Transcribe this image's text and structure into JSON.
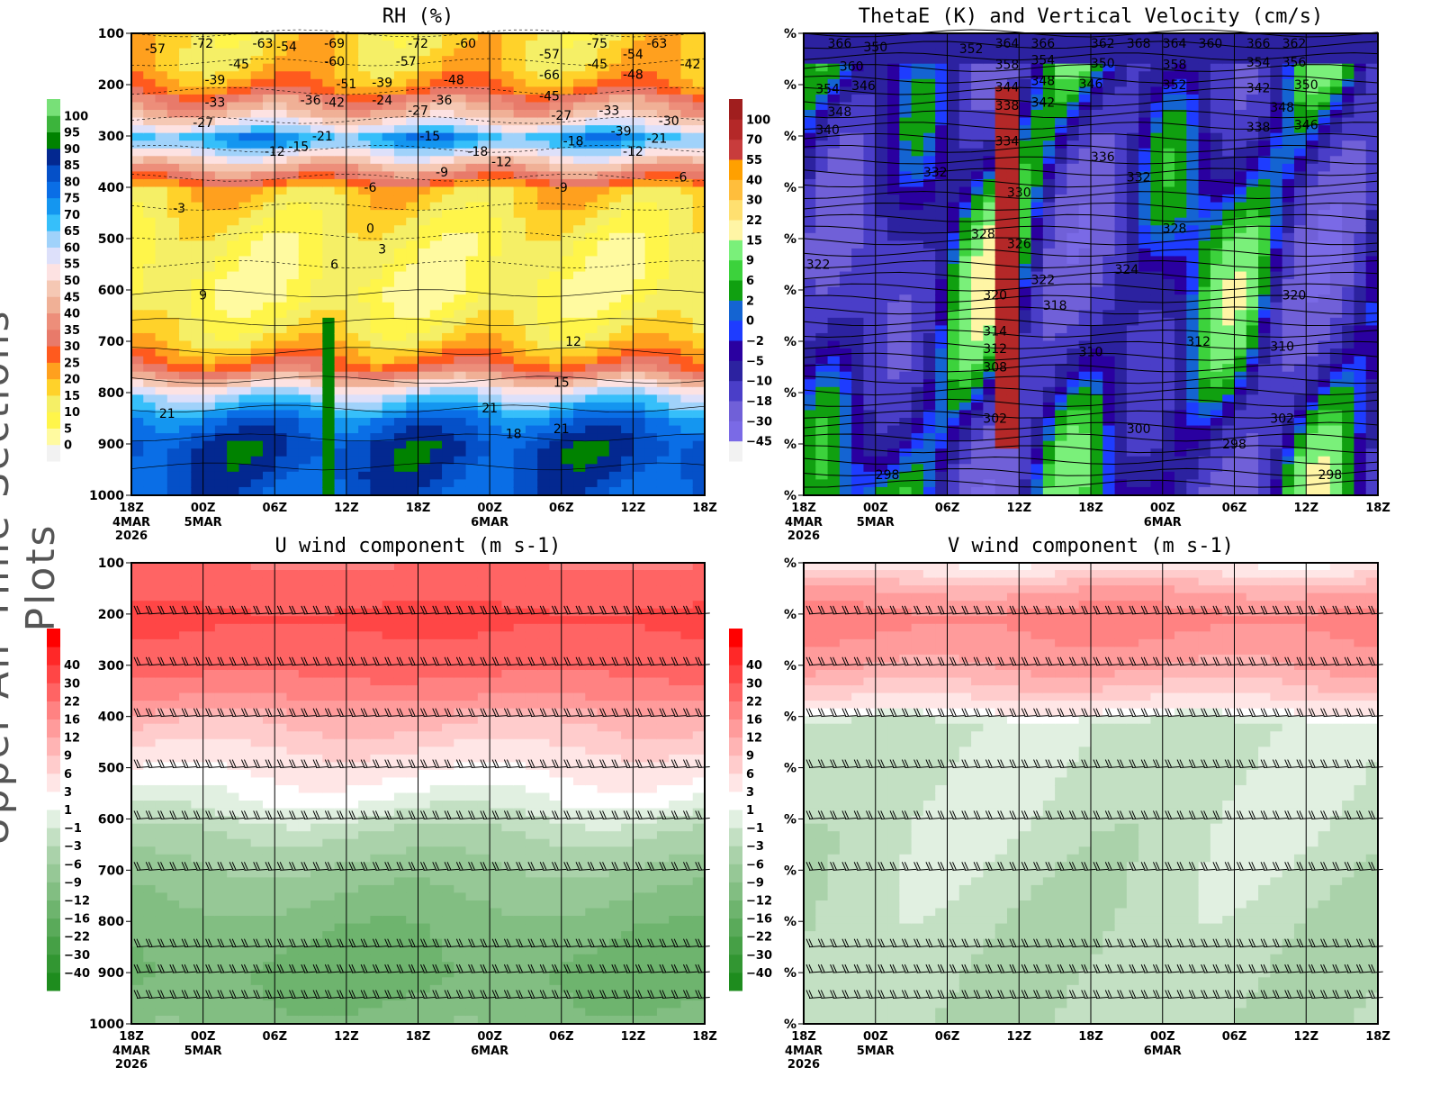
{
  "side_title": "Upper-Air Time Sections Plots",
  "time_ticks": [
    "18Z",
    "00Z",
    "06Z",
    "12Z",
    "18Z",
    "00Z",
    "06Z",
    "12Z",
    "18Z"
  ],
  "date_labels": [
    {
      "tick": 0,
      "lines": [
        "4MAR",
        "2026"
      ]
    },
    {
      "tick": 1,
      "lines": [
        "5MAR"
      ]
    },
    {
      "tick": 5,
      "lines": [
        "6MAR"
      ]
    }
  ],
  "pressure_ticks": [
    100,
    200,
    300,
    400,
    500,
    600,
    700,
    800,
    900,
    1000
  ],
  "chart_data": [
    {
      "id": "rh",
      "type": "heatmap",
      "title": "RH (%)",
      "ylabel_style": "pressure",
      "levels": [
        0,
        5,
        10,
        15,
        20,
        25,
        30,
        35,
        40,
        45,
        50,
        55,
        60,
        65,
        70,
        75,
        80,
        85,
        90,
        95,
        100
      ],
      "colors": [
        "#f2f2f2",
        "#fffaa0",
        "#fff54a",
        "#f5ef66",
        "#ffd22a",
        "#ffa01e",
        "#ff5a1e",
        "#e87a6a",
        "#ed8e7a",
        "#f0b096",
        "#f5c8b4",
        "#fde2e2",
        "#dde0fa",
        "#a0d2fa",
        "#36bffa",
        "#1496f0",
        "#0a6ee6",
        "#0550c8",
        "#032890",
        "#008200",
        "#3cb43c",
        "#78e078"
      ],
      "profile": [
        [
          100,
          15
        ],
        [
          160,
          18
        ],
        [
          200,
          25
        ],
        [
          220,
          35
        ],
        [
          250,
          45
        ],
        [
          280,
          60
        ],
        [
          300,
          74
        ],
        [
          320,
          60
        ],
        [
          350,
          45
        ],
        [
          380,
          30
        ],
        [
          400,
          18
        ],
        [
          500,
          9
        ],
        [
          600,
          6
        ],
        [
          680,
          14
        ],
        [
          740,
          28
        ],
        [
          770,
          45
        ],
        [
          800,
          62
        ],
        [
          850,
          78
        ],
        [
          900,
          86
        ],
        [
          950,
          84
        ],
        [
          1000,
          80
        ]
      ],
      "contours": [
        [
          2,
          130,
          "-57"
        ],
        [
          6,
          70,
          "-72"
        ],
        [
          11,
          90,
          "-63"
        ],
        [
          13,
          125,
          "-54"
        ],
        [
          9,
          160,
          "-45"
        ],
        [
          7,
          190,
          "-39"
        ],
        [
          7,
          220,
          "-33"
        ],
        [
          6,
          260,
          "-27"
        ],
        [
          17,
          110,
          "-69"
        ],
        [
          17,
          140,
          "-60"
        ],
        [
          18,
          170,
          "-51"
        ],
        [
          24,
          70,
          "-72"
        ],
        [
          23,
          140,
          "-57"
        ],
        [
          24,
          250,
          "-27"
        ],
        [
          21,
          230,
          "-24"
        ],
        [
          16,
          300,
          "-21"
        ],
        [
          29,
          330,
          "-18"
        ],
        [
          31,
          350,
          "-12"
        ],
        [
          26,
          370,
          "-9"
        ],
        [
          20,
          400,
          "-6"
        ],
        [
          12,
          330,
          "-12"
        ],
        [
          14,
          320,
          "-15"
        ],
        [
          4,
          440,
          "-3"
        ],
        [
          20,
          480,
          "0"
        ],
        [
          21,
          520,
          "3"
        ],
        [
          17,
          550,
          "6"
        ],
        [
          6,
          610,
          "9"
        ],
        [
          3,
          840,
          "21"
        ],
        [
          30,
          830,
          "21"
        ],
        [
          37,
          700,
          "12"
        ],
        [
          36,
          780,
          "15"
        ],
        [
          36,
          870,
          "21"
        ],
        [
          32,
          880,
          "18"
        ],
        [
          35,
          140,
          "-57"
        ],
        [
          42,
          140,
          "-54"
        ],
        [
          45,
          270,
          "-30"
        ],
        [
          42,
          330,
          "-12"
        ],
        [
          46,
          380,
          "-6"
        ],
        [
          28,
          70,
          "-60"
        ],
        [
          35,
          40,
          "-66"
        ],
        [
          39,
          40,
          "-75"
        ],
        [
          44,
          70,
          "-63"
        ],
        [
          35,
          180,
          "-45"
        ],
        [
          36,
          260,
          "-27"
        ],
        [
          44,
          290,
          "-21"
        ],
        [
          37,
          310,
          "-18"
        ],
        [
          36,
          400,
          "-9"
        ],
        [
          42,
          110,
          "-48"
        ],
        [
          26,
          230,
          "-36"
        ],
        [
          21,
          210,
          "-39"
        ],
        [
          15,
          230,
          "-36"
        ],
        [
          17,
          220,
          "-42"
        ],
        [
          25,
          300,
          "-15"
        ],
        [
          27,
          190,
          "-48"
        ],
        [
          40,
          250,
          "-33"
        ],
        [
          41,
          220,
          "-39"
        ],
        [
          39,
          160,
          "-45"
        ],
        [
          47,
          160,
          "-42"
        ]
      ]
    },
    {
      "id": "thetae",
      "type": "heatmap",
      "title": "ThetaE (K) and Vertical Velocity (cm/s)",
      "ylabel_style": "percent",
      "levels": [
        -45,
        -30,
        -18,
        -10,
        -5,
        -2,
        0,
        2,
        6,
        9,
        15,
        22,
        30,
        40,
        55,
        70,
        100
      ],
      "colors": [
        "#f2f2f2",
        "#7a6ae6",
        "#7060d8",
        "#4a3ec8",
        "#2c22a0",
        "#2a00a0",
        "#1e3cff",
        "#1464d2",
        "#10a010",
        "#3cd23c",
        "#7af07a",
        "#fff5a5",
        "#ffe070",
        "#ffbe3c",
        "#ffa000",
        "#c83c3c",
        "#b42828",
        "#a01e1e"
      ],
      "contours": [
        [
          3,
          50,
          "366"
        ],
        [
          4,
          80,
          "360"
        ],
        [
          2,
          110,
          "354"
        ],
        [
          3,
          140,
          "348"
        ],
        [
          6,
          140,
          "350"
        ],
        [
          5,
          160,
          "346"
        ],
        [
          17,
          70,
          "364"
        ],
        [
          17,
          90,
          "358"
        ],
        [
          14,
          130,
          "352"
        ],
        [
          20,
          70,
          "366"
        ],
        [
          20,
          110,
          "354"
        ],
        [
          20,
          150,
          "348"
        ],
        [
          25,
          70,
          "362"
        ],
        [
          25,
          130,
          "350"
        ],
        [
          24,
          170,
          "346"
        ],
        [
          28,
          50,
          "368"
        ],
        [
          31,
          70,
          "364"
        ],
        [
          31,
          90,
          "358"
        ],
        [
          31,
          130,
          "352"
        ],
        [
          34,
          90,
          "360"
        ],
        [
          38,
          70,
          "366"
        ],
        [
          38,
          100,
          "354"
        ],
        [
          41,
          80,
          "362"
        ],
        [
          41,
          100,
          "356"
        ],
        [
          42,
          130,
          "350"
        ],
        [
          40,
          160,
          "348"
        ],
        [
          42,
          180,
          "346"
        ],
        [
          17,
          190,
          "344"
        ],
        [
          20,
          220,
          "342"
        ],
        [
          17,
          240,
          "338"
        ],
        [
          38,
          220,
          "342"
        ],
        [
          38,
          240,
          "338"
        ],
        [
          2,
          260,
          "340"
        ],
        [
          17,
          310,
          "334"
        ],
        [
          25,
          340,
          "336"
        ],
        [
          11,
          370,
          "332"
        ],
        [
          28,
          380,
          "332"
        ],
        [
          18,
          410,
          "330"
        ],
        [
          15,
          490,
          "328"
        ],
        [
          18,
          510,
          "326"
        ],
        [
          31,
          480,
          "328"
        ],
        [
          27,
          560,
          "324"
        ],
        [
          1,
          550,
          "322"
        ],
        [
          20,
          580,
          "322"
        ],
        [
          16,
          610,
          "320"
        ],
        [
          21,
          630,
          "318"
        ],
        [
          41,
          610,
          "320"
        ],
        [
          16,
          680,
          "314"
        ],
        [
          16,
          700,
          "312"
        ],
        [
          24,
          720,
          "310"
        ],
        [
          33,
          700,
          "312"
        ],
        [
          40,
          710,
          "310"
        ],
        [
          16,
          750,
          "308"
        ],
        [
          16,
          850,
          "302"
        ],
        [
          40,
          850,
          "302"
        ],
        [
          28,
          870,
          "300"
        ],
        [
          36,
          900,
          "298"
        ],
        [
          7,
          960,
          "298"
        ],
        [
          44,
          960,
          "298"
        ]
      ]
    },
    {
      "id": "u",
      "type": "heatmap",
      "title": "U wind component (m s-1)",
      "ylabel_style": "pressure",
      "levels": [
        -40,
        -30,
        -22,
        -16,
        -12,
        -9,
        -6,
        -3,
        -1,
        1,
        3,
        6,
        9,
        12,
        16,
        22,
        30,
        40
      ],
      "colors": [
        "#1e8c1e",
        "#329632",
        "#46a046",
        "#5aaa5a",
        "#6eb46e",
        "#82be82",
        "#96c896",
        "#aad2aa",
        "#c3e0c3",
        "#e1f0e1",
        "#ffffff",
        "#ffe6e6",
        "#ffcccc",
        "#ffb4b4",
        "#ff9b9b",
        "#ff8282",
        "#ff6464",
        "#ff4646",
        "#ff2828",
        "#ff0000"
      ],
      "profile": [
        [
          100,
          22
        ],
        [
          200,
          32
        ],
        [
          300,
          24
        ],
        [
          360,
          16
        ],
        [
          400,
          10
        ],
        [
          470,
          5
        ],
        [
          530,
          2
        ],
        [
          570,
          0
        ],
        [
          620,
          -3
        ],
        [
          700,
          -7
        ],
        [
          800,
          -11
        ],
        [
          900,
          -13
        ],
        [
          1000,
          -10
        ]
      ],
      "barb_levels": [
        200,
        300,
        400,
        500,
        600,
        700,
        850,
        900,
        950
      ]
    },
    {
      "id": "v",
      "type": "heatmap",
      "title": "V wind component (m s-1)",
      "ylabel_style": "percent",
      "levels": [
        -40,
        -30,
        -22,
        -16,
        -12,
        -9,
        -6,
        -3,
        -1,
        1,
        3,
        6,
        9,
        12,
        16,
        22,
        30,
        40
      ],
      "colors": [
        "#1e8c1e",
        "#329632",
        "#46a046",
        "#5aaa5a",
        "#6eb46e",
        "#82be82",
        "#96c896",
        "#aad2aa",
        "#c3e0c3",
        "#e1f0e1",
        "#ffffff",
        "#ffe6e6",
        "#ffcccc",
        "#ffb4b4",
        "#ff9b9b",
        "#ff8282",
        "#ff6464",
        "#ff4646",
        "#ff2828",
        "#ff0000"
      ],
      "profile": [
        [
          100,
          4
        ],
        [
          150,
          12
        ],
        [
          200,
          18
        ],
        [
          300,
          12
        ],
        [
          360,
          6
        ],
        [
          390,
          1.5
        ],
        [
          410,
          -1.5
        ],
        [
          600,
          -1.5
        ],
        [
          800,
          -2.5
        ],
        [
          1000,
          -2.5
        ]
      ],
      "barb_levels": [
        200,
        300,
        400,
        500,
        600,
        700,
        850,
        900,
        950
      ]
    }
  ],
  "percent_label": "%"
}
